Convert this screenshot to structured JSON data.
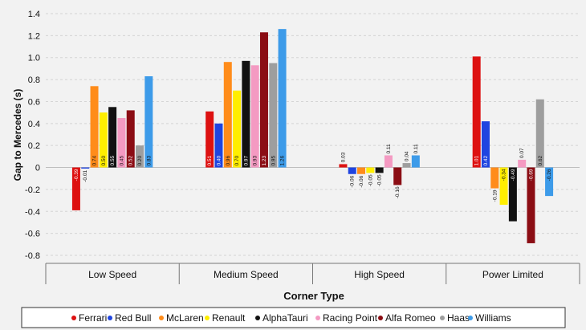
{
  "chart_data": {
    "type": "bar",
    "title": "",
    "xlabel": "Corner Type",
    "ylabel": "Gap to Mercedes (s)",
    "ylim": [
      -0.8,
      1.4
    ],
    "yticks": [
      -0.8,
      -0.6,
      -0.4,
      -0.2,
      0,
      0.2,
      0.4,
      0.6,
      0.8,
      1.0,
      1.2,
      1.4
    ],
    "ytick_labels": [
      "-0.8",
      "-0.6",
      "-0.4",
      "-0.2",
      "0",
      "0.2",
      "0.4",
      "0.6",
      "0.8",
      "1.0",
      "1.2",
      "1.4"
    ],
    "grid": "horizontal dashed",
    "legend_position": "bottom",
    "categories": [
      "Low Speed",
      "Medium Speed",
      "High Speed",
      "Power Limited"
    ],
    "series": [
      {
        "name": "Ferrari",
        "color": "#dd1111",
        "values": [
          -0.39,
          0.51,
          0.03,
          1.01
        ],
        "labels": [
          "-0.39",
          "0.51",
          "0.03",
          "1.01"
        ]
      },
      {
        "name": "Red Bull",
        "color": "#1f44e0",
        "values": [
          -0.01,
          0.4,
          -0.06,
          0.42
        ],
        "labels": [
          "-0.01",
          "0.40",
          "-0.06",
          "0.42"
        ]
      },
      {
        "name": "McLaren",
        "color": "#ff8c1a",
        "values": [
          0.74,
          0.96,
          -0.06,
          -0.19
        ],
        "labels": [
          "0.74",
          "0.96",
          "-0.06",
          "-0.19"
        ]
      },
      {
        "name": "Renault",
        "color": "#ffee00",
        "values": [
          0.5,
          0.7,
          -0.05,
          -0.34
        ],
        "labels": [
          "0.50",
          "0.70",
          "-0.05",
          "-0.34"
        ]
      },
      {
        "name": "AlphaTauri",
        "color": "#111111",
        "values": [
          0.55,
          0.97,
          -0.05,
          -0.49
        ],
        "labels": [
          "0.55",
          "0.97",
          "-0.05",
          "-0.49"
        ]
      },
      {
        "name": "Racing Point",
        "color": "#f49ac2",
        "values": [
          0.45,
          0.93,
          0.11,
          0.07
        ],
        "labels": [
          "0.45",
          "0.93",
          "0.11",
          "0.07"
        ]
      },
      {
        "name": "Alfa Romeo",
        "color": "#8b0d14",
        "values": [
          0.52,
          1.23,
          -0.16,
          -0.69
        ],
        "labels": [
          "0.52",
          "1.23",
          "-0.16",
          "-0.69"
        ]
      },
      {
        "name": "Haas",
        "color": "#9e9e9e",
        "values": [
          0.2,
          0.95,
          0.04,
          0.62
        ],
        "labels": [
          "0.20",
          "0.95",
          "0.04",
          "0.62"
        ]
      },
      {
        "name": "Williams",
        "color": "#3d9be9",
        "values": [
          0.83,
          1.26,
          0.11,
          -0.26
        ],
        "labels": [
          "0.83",
          "1.26",
          "0.11",
          "-0.26"
        ]
      }
    ]
  }
}
